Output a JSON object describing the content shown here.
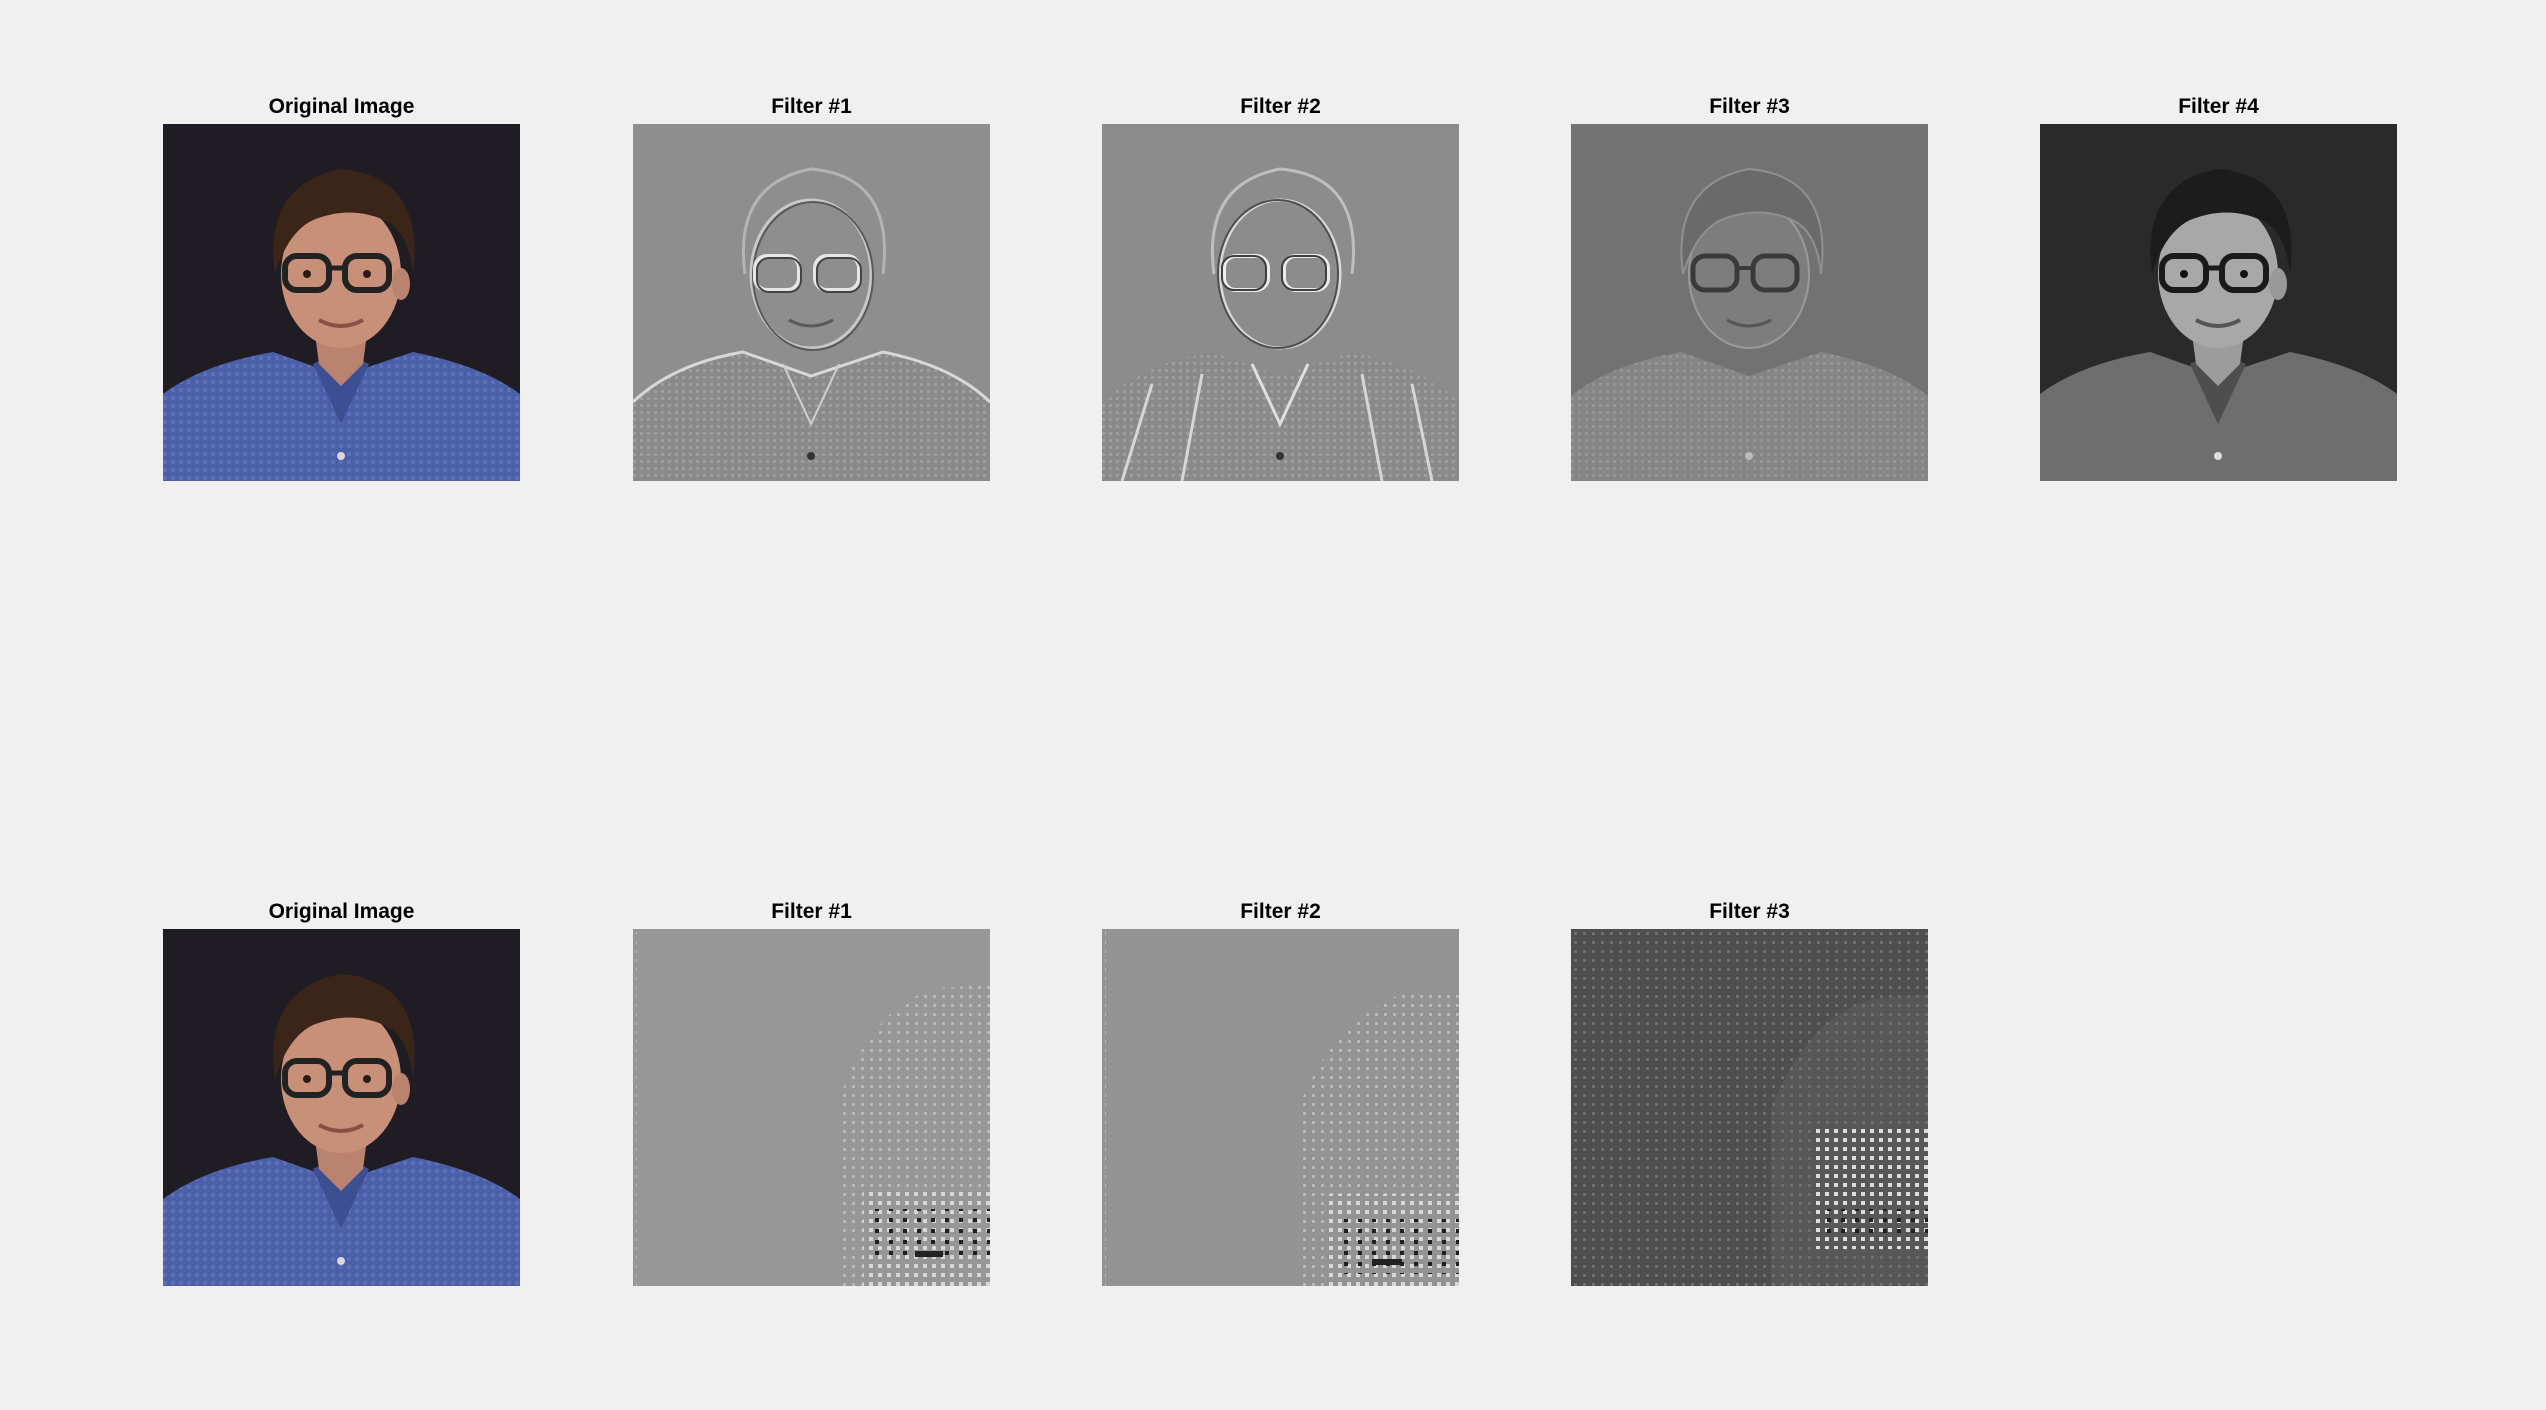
{
  "figure": {
    "rows": [
      {
        "panels": [
          {
            "title": "Original Image",
            "kind": "photo-color-portrait"
          },
          {
            "title": "Filter #1",
            "kind": "emboss-gray-portrait"
          },
          {
            "title": "Filter #2",
            "kind": "emboss-gray-portrait"
          },
          {
            "title": "Filter #3",
            "kind": "edge-gray-portrait"
          },
          {
            "title": "Filter #4",
            "kind": "photo-gray-portrait"
          }
        ]
      },
      {
        "panels": [
          {
            "title": "Original Image",
            "kind": "photo-color-portrait"
          },
          {
            "title": "Filter #1",
            "kind": "sparse-dot-gray"
          },
          {
            "title": "Filter #2",
            "kind": "sparse-dot-gray"
          },
          {
            "title": "Filter #3",
            "kind": "sparse-dot-dark"
          }
        ]
      }
    ]
  },
  "colors": {
    "background": "#f0f0f0",
    "shirt_blue": "#4a5fa6",
    "hair_brown": "#3a2418",
    "skin": "#c9917a",
    "photo_bg": "#1e1c22"
  }
}
